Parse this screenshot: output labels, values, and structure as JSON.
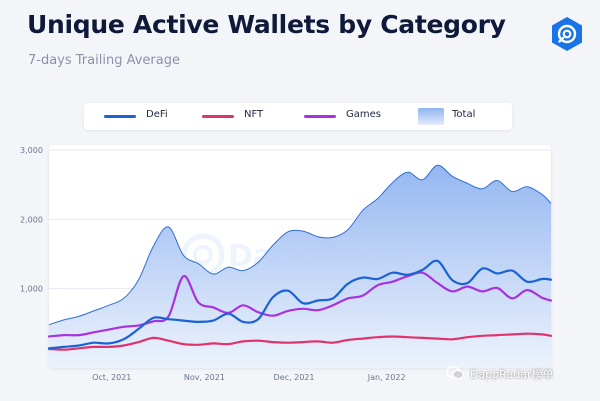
{
  "header": {
    "title": "Unique Active Wallets by Category",
    "subtitle": "7-days Trailing Average"
  },
  "brand": {
    "logo_icon": "dappradar-logo-icon",
    "accent": "#1b73e8"
  },
  "watermark": {
    "text": "DappRadar"
  },
  "footer_mark": {
    "text": "DappRadar榜单",
    "icon": "wechat-icon"
  },
  "chart_data": {
    "type": "line",
    "title": "Unique Active Wallets by Category",
    "subtitle": "7-days Trailing Average",
    "xlabel": "",
    "ylabel": "",
    "x_range": [
      "2021-09-10",
      "2022-02-25"
    ],
    "x_ticks": [
      {
        "date": "2021-10-01",
        "label": "Oct, 2021"
      },
      {
        "date": "2021-11-01",
        "label": "Nov, 2021"
      },
      {
        "date": "2021-12-01",
        "label": "Dec, 2021"
      },
      {
        "date": "2022-01-01",
        "label": "Jan, 2022"
      }
    ],
    "ylim": [
      0,
      3000
    ],
    "y_ticks": [
      {
        "value": 1000,
        "label": "1,000"
      },
      {
        "value": 2000,
        "label": "2,000"
      },
      {
        "value": 3000,
        "label": "3,000"
      }
    ],
    "grid": "horizontal",
    "legend_position": "top",
    "x": [
      "2021-09-10",
      "2021-09-15",
      "2021-09-20",
      "2021-09-25",
      "2021-09-30",
      "2021-10-05",
      "2021-10-10",
      "2021-10-15",
      "2021-10-20",
      "2021-10-25",
      "2021-10-30",
      "2021-11-04",
      "2021-11-09",
      "2021-11-14",
      "2021-11-19",
      "2021-11-24",
      "2021-11-29",
      "2021-12-04",
      "2021-12-09",
      "2021-12-14",
      "2021-12-19",
      "2021-12-24",
      "2021-12-29",
      "2022-01-03",
      "2022-01-08",
      "2022-01-13",
      "2022-01-18",
      "2022-01-23",
      "2022-01-28",
      "2022-02-02",
      "2022-02-07",
      "2022-02-12",
      "2022-02-17",
      "2022-02-22",
      "2022-02-25"
    ],
    "series": [
      {
        "name": "DeFi",
        "color": "#1b62d4",
        "values": [
          140,
          160,
          180,
          220,
          210,
          270,
          420,
          580,
          560,
          540,
          520,
          540,
          640,
          520,
          560,
          880,
          970,
          790,
          830,
          860,
          1070,
          1160,
          1140,
          1230,
          1200,
          1270,
          1400,
          1120,
          1080,
          1290,
          1220,
          1260,
          1100,
          1140,
          1130
        ]
      },
      {
        "name": "NFT",
        "color": "#e0336b",
        "values": [
          130,
          120,
          140,
          160,
          160,
          180,
          230,
          290,
          250,
          200,
          190,
          210,
          200,
          240,
          250,
          230,
          220,
          230,
          240,
          220,
          260,
          280,
          300,
          310,
          300,
          290,
          280,
          270,
          300,
          320,
          330,
          340,
          350,
          340,
          320
        ]
      },
      {
        "name": "Games",
        "color": "#a733e0",
        "values": [
          310,
          330,
          330,
          370,
          410,
          450,
          470,
          530,
          600,
          1180,
          800,
          730,
          650,
          760,
          660,
          610,
          680,
          710,
          690,
          760,
          860,
          900,
          1050,
          1100,
          1180,
          1230,
          1080,
          960,
          1030,
          960,
          1010,
          860,
          980,
          870,
          830
        ]
      },
      {
        "name": "Total",
        "color": "#2f6fd3",
        "fill": "#b7cff5",
        "values": [
          480,
          550,
          600,
          680,
          760,
          860,
          1130,
          1620,
          1890,
          1480,
          1360,
          1210,
          1310,
          1260,
          1380,
          1630,
          1820,
          1830,
          1750,
          1740,
          1850,
          2130,
          2300,
          2530,
          2680,
          2570,
          2780,
          2620,
          2520,
          2440,
          2560,
          2400,
          2470,
          2360,
          2230
        ]
      }
    ]
  }
}
